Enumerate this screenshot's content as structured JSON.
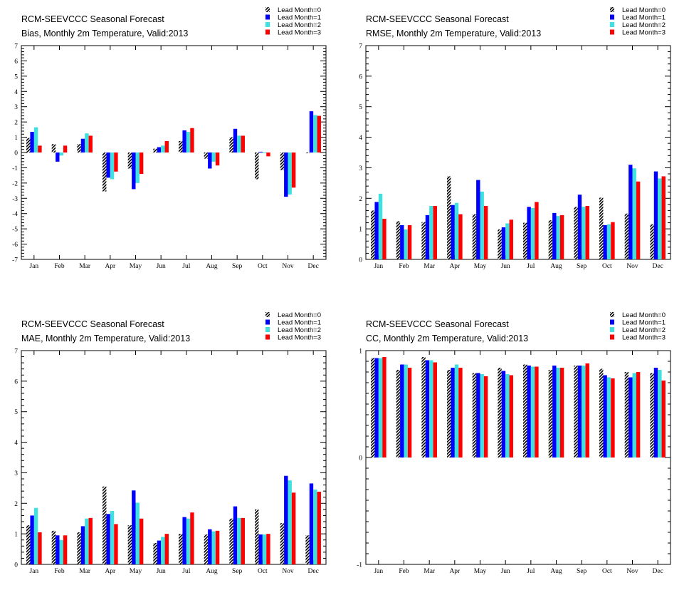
{
  "months": [
    "Jan",
    "Feb",
    "Mar",
    "Apr",
    "May",
    "Jun",
    "Jul",
    "Aug",
    "Sep",
    "Oct",
    "Nov",
    "Dec"
  ],
  "legend": [
    "Lead Month=0",
    "Lead Month=1",
    "Lead Month=2",
    "Lead Month=3"
  ],
  "colors": {
    "lead0": "hatched-black",
    "lead1": "#0000ff",
    "lead2": "#40e0e0",
    "lead3": "#ff0000"
  },
  "chart_data": [
    {
      "type": "bar",
      "title": "RCM-SEEVCCC Seasonal Forecast",
      "subtitle": "Bias, Monthly 2m Temperature, Valid:2013",
      "categories": [
        "Jan",
        "Feb",
        "Mar",
        "Apr",
        "May",
        "Jun",
        "Jul",
        "Aug",
        "Sep",
        "Oct",
        "Nov",
        "Dec"
      ],
      "ylim": [
        -7,
        7
      ],
      "yticks": [
        "-7",
        "-6",
        "-5",
        "-4",
        "-3",
        "-2",
        "-1",
        "0",
        "1",
        "2",
        "3",
        "4",
        "5",
        "6",
        "7"
      ],
      "series": [
        {
          "name": "Lead Month=0",
          "values": [
            0.95,
            0.55,
            0.55,
            -2.55,
            -1.05,
            0.25,
            0.75,
            -0.4,
            1.0,
            -1.75,
            -1.15,
            -0.05
          ]
        },
        {
          "name": "Lead Month=1",
          "values": [
            1.35,
            -0.6,
            0.9,
            -1.65,
            -2.4,
            0.35,
            1.45,
            -1.05,
            1.55,
            0.05,
            -2.9,
            2.7
          ]
        },
        {
          "name": "Lead Month=2",
          "values": [
            1.65,
            -0.2,
            1.25,
            -1.75,
            -2.0,
            0.45,
            1.35,
            -0.6,
            1.1,
            -0.05,
            -2.75,
            2.45
          ]
        },
        {
          "name": "Lead Month=3",
          "values": [
            0.45,
            0.45,
            1.1,
            -1.25,
            -1.4,
            0.75,
            1.6,
            -0.85,
            1.1,
            -0.25,
            -2.3,
            2.4
          ]
        }
      ]
    },
    {
      "type": "bar",
      "title": "RCM-SEEVCCC Seasonal Forecast",
      "subtitle": "RMSE, Monthly 2m Temperature, Valid:2013",
      "categories": [
        "Jan",
        "Feb",
        "Mar",
        "Apr",
        "May",
        "Jun",
        "Jul",
        "Aug",
        "Sep",
        "Oct",
        "Nov",
        "Dec"
      ],
      "ylim": [
        0,
        7
      ],
      "yticks": [
        "0",
        "1",
        "2",
        "3",
        "4",
        "5",
        "6",
        "7"
      ],
      "series": [
        {
          "name": "Lead Month=0",
          "values": [
            1.6,
            1.25,
            1.22,
            2.72,
            1.48,
            0.98,
            1.2,
            1.28,
            1.72,
            2.02,
            1.5,
            1.15
          ]
        },
        {
          "name": "Lead Month=1",
          "values": [
            1.88,
            1.12,
            1.45,
            1.78,
            2.6,
            1.05,
            1.72,
            1.52,
            2.12,
            1.12,
            3.1,
            2.88
          ]
        },
        {
          "name": "Lead Month=2",
          "values": [
            2.15,
            0.98,
            1.75,
            1.85,
            2.22,
            1.18,
            1.68,
            1.42,
            1.72,
            1.15,
            2.98,
            2.65
          ]
        },
        {
          "name": "Lead Month=3",
          "values": [
            1.33,
            1.12,
            1.75,
            1.48,
            1.75,
            1.3,
            1.88,
            1.45,
            1.75,
            1.22,
            2.55,
            2.72
          ]
        }
      ]
    },
    {
      "type": "bar",
      "title": "RCM-SEEVCCC Seasonal Forecast",
      "subtitle": "MAE, Monthly 2m Temperature, Valid:2013",
      "categories": [
        "Jan",
        "Feb",
        "Mar",
        "Apr",
        "May",
        "Jun",
        "Jul",
        "Aug",
        "Sep",
        "Oct",
        "Nov",
        "Dec"
      ],
      "ylim": [
        0,
        7
      ],
      "yticks": [
        "0",
        "1",
        "2",
        "3",
        "4",
        "5",
        "6",
        "7"
      ],
      "series": [
        {
          "name": "Lead Month=0",
          "values": [
            1.28,
            1.1,
            1.05,
            2.55,
            1.28,
            0.7,
            1.0,
            0.98,
            1.5,
            1.8,
            1.35,
            0.95
          ]
        },
        {
          "name": "Lead Month=1",
          "values": [
            1.6,
            0.95,
            1.25,
            1.65,
            2.42,
            0.78,
            1.55,
            1.15,
            1.9,
            0.98,
            2.9,
            2.65
          ]
        },
        {
          "name": "Lead Month=2",
          "values": [
            1.85,
            0.8,
            1.5,
            1.75,
            2.02,
            0.9,
            1.5,
            1.08,
            1.52,
            0.98,
            2.75,
            2.45
          ]
        },
        {
          "name": "Lead Month=3",
          "values": [
            1.05,
            0.95,
            1.52,
            1.32,
            1.5,
            1.0,
            1.7,
            1.1,
            1.52,
            1.0,
            2.35,
            2.38
          ]
        }
      ]
    },
    {
      "type": "bar",
      "title": "RCM-SEEVCCC Seasonal Forecast",
      "subtitle": "CC, Monthly 2m Temperature, Valid:2013",
      "categories": [
        "Jan",
        "Feb",
        "Mar",
        "Apr",
        "May",
        "Jun",
        "Jul",
        "Aug",
        "Sep",
        "Oct",
        "Nov",
        "Dec"
      ],
      "ylim": [
        -1,
        1
      ],
      "yticks": [
        "-1",
        "0",
        "1"
      ],
      "series": [
        {
          "name": "Lead Month=0",
          "values": [
            0.93,
            0.82,
            0.94,
            0.82,
            0.79,
            0.84,
            0.87,
            0.82,
            0.86,
            0.83,
            0.8,
            0.79
          ]
        },
        {
          "name": "Lead Month=1",
          "values": [
            0.93,
            0.87,
            0.91,
            0.84,
            0.79,
            0.81,
            0.86,
            0.86,
            0.86,
            0.77,
            0.75,
            0.84
          ]
        },
        {
          "name": "Lead Month=2",
          "values": [
            0.93,
            0.87,
            0.91,
            0.87,
            0.78,
            0.78,
            0.85,
            0.84,
            0.86,
            0.75,
            0.79,
            0.82
          ]
        },
        {
          "name": "Lead Month=3",
          "values": [
            0.94,
            0.84,
            0.89,
            0.84,
            0.76,
            0.77,
            0.85,
            0.84,
            0.88,
            0.74,
            0.8,
            0.72
          ]
        }
      ]
    }
  ]
}
